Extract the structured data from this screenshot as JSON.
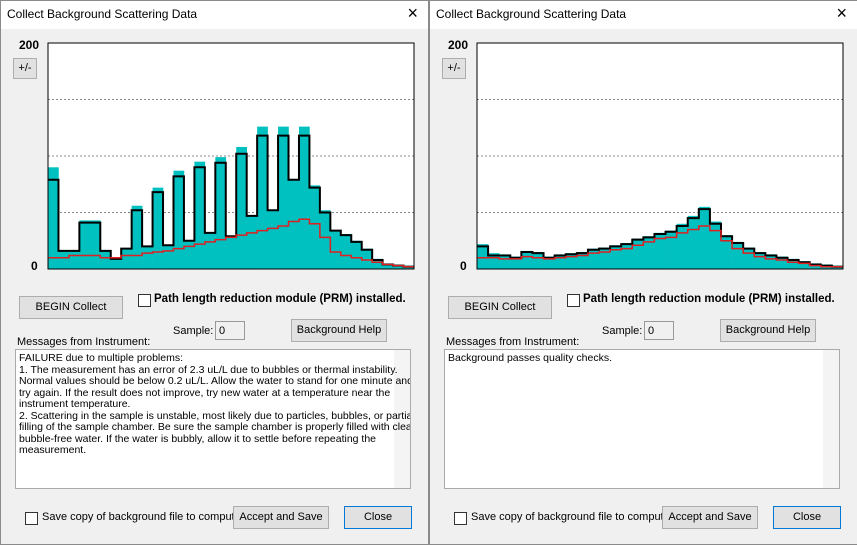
{
  "dialogs": [
    {
      "title": "Collect Background Scattering Data",
      "close_icon": "×",
      "scale_button": "+/-",
      "chart_data": {
        "type": "step",
        "ylim": [
          0,
          200
        ],
        "yticks": [
          0,
          200
        ],
        "grid_values": [
          50,
          100,
          150
        ],
        "series": [
          {
            "color": "#00c0c0",
            "fill": true,
            "values": [
              90,
              16,
              16,
              43,
              43,
              16,
              9,
              18,
              56,
              20,
              72,
              21,
              87,
              25,
              95,
              32,
              99,
              29,
              108,
              47,
              126,
              52,
              126,
              79,
              126,
              74,
              52,
              34,
              31,
              25,
              18,
              9,
              5,
              4,
              3
            ]
          },
          {
            "color": "#000000",
            "fill": false,
            "values": [
              79,
              16,
              16,
              41,
              41,
              16,
              9,
              18,
              52,
              20,
              68,
              21,
              82,
              25,
              90,
              32,
              94,
              29,
              102,
              47,
              118,
              52,
              118,
              79,
              118,
              72,
              50,
              34,
              30,
              24,
              17,
              8,
              4,
              3,
              2
            ]
          },
          {
            "color": "#e02020",
            "fill": false,
            "values": [
              10,
              10,
              12,
              12,
              12,
              10,
              10,
              12,
              12,
              14,
              15,
              16,
              18,
              20,
              22,
              24,
              26,
              28,
              30,
              32,
              34,
              36,
              38,
              42,
              44,
              40,
              28,
              15,
              12,
              10,
              8,
              6,
              4,
              3,
              2
            ]
          }
        ]
      },
      "begin_button": "BEGIN Collect",
      "prm_checkbox": "Path length reduction module (PRM) installed.",
      "sample_label": "Sample:",
      "sample_value": "0",
      "help_button": "Background Help",
      "messages_label": "Messages from Instrument:",
      "messages": [
        "FAILURE due to multiple problems:",
        "1. The measurement has an error of 2.3 uL/L due to bubbles or thermal instability.",
        "Normal values should be below 0.2 uL/L. Allow the water to stand for one minute and",
        "try again. If the result does not improve, try new water at a temperature near the",
        "instrument temperature.",
        "2. Scattering in the sample is unstable, most likely due to particles, bubbles, or partial",
        "filling of the sample chamber. Be sure the sample chamber is properly filled with clean,",
        "bubble-free water. If the water is bubbly, allow it to settle before repeating the",
        "measurement."
      ],
      "save_checkbox": "Save copy of background file to computer",
      "accept_button": "Accept and Save",
      "close_button": "Close"
    },
    {
      "title": "Collect Background Scattering Data",
      "close_icon": "×",
      "scale_button": "+/-",
      "chart_data": {
        "type": "step",
        "ylim": [
          0,
          200
        ],
        "yticks": [
          0,
          200
        ],
        "grid_values": [
          50,
          100,
          150
        ],
        "series": [
          {
            "color": "#00c0c0",
            "fill": true,
            "values": [
              22,
              14,
              13,
              11,
              16,
              15,
              11,
              13,
              14,
              15,
              18,
              19,
              21,
              23,
              27,
              29,
              32,
              34,
              40,
              47,
              55,
              42,
              30,
              24,
              19,
              15,
              13,
              11,
              9,
              7,
              5,
              4,
              3
            ]
          },
          {
            "color": "#000000",
            "fill": false,
            "values": [
              20,
              12,
              12,
              10,
              15,
              14,
              10,
              12,
              13,
              14,
              17,
              18,
              20,
              22,
              26,
              28,
              31,
              33,
              38,
              45,
              53,
              40,
              29,
              23,
              18,
              14,
              12,
              10,
              8,
              6,
              4,
              3,
              2
            ]
          },
          {
            "color": "#e02020",
            "fill": false,
            "values": [
              10,
              10,
              9,
              9,
              11,
              10,
              9,
              10,
              11,
              12,
              14,
              15,
              17,
              18,
              21,
              24,
              27,
              28,
              32,
              35,
              38,
              34,
              25,
              18,
              14,
              11,
              9,
              8,
              6,
              5,
              3,
              2,
              2
            ]
          }
        ]
      },
      "begin_button": "BEGIN Collect",
      "prm_checkbox": "Path length reduction module (PRM) installed.",
      "sample_label": "Sample:",
      "sample_value": "0",
      "help_button": "Background Help",
      "messages_label": "Messages from Instrument:",
      "messages": [
        "Background passes quality checks."
      ],
      "save_checkbox": "Save copy of background file to computer",
      "accept_button": "Accept and Save",
      "close_button": "Close"
    }
  ]
}
